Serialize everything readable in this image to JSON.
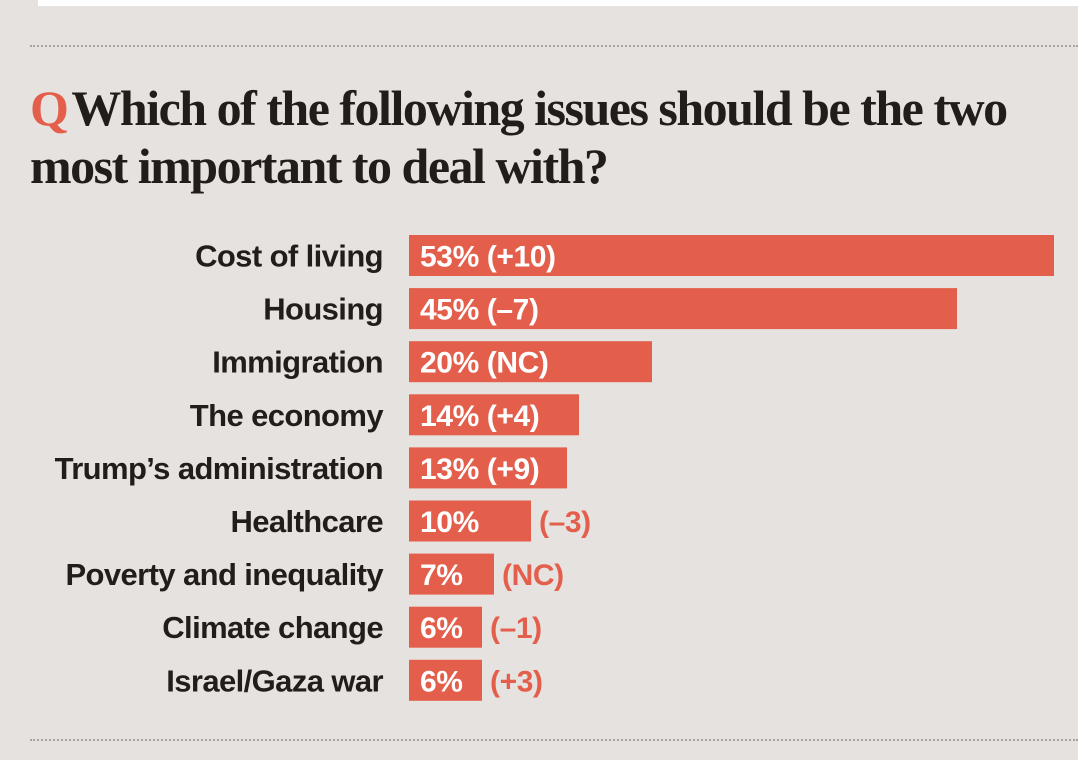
{
  "colors": {
    "background": "#e6e2e0",
    "bar": "#e35e4b",
    "text": "#211d1a",
    "inside_label": "#ffffff",
    "outside_label": "#e35e4b"
  },
  "question": {
    "marker": "Q",
    "text": "Which of the following issues should be the two most important to deal with?"
  },
  "chart_data": {
    "type": "bar",
    "orientation": "horizontal",
    "title": "Which of the following issues should be the two most important to deal with?",
    "xlabel": "",
    "ylabel": "",
    "unit": "%",
    "xlim": [
      0,
      53
    ],
    "categories": [
      "Cost of living",
      "Housing",
      "Immigration",
      "The economy",
      "Trump’s administration",
      "Healthcare",
      "Poverty and inequality",
      "Climate change",
      "Israel/Gaza war"
    ],
    "values": [
      53,
      45,
      20,
      14,
      13,
      10,
      7,
      6,
      6
    ],
    "changes": [
      "+10",
      "–7",
      "NC",
      "+4",
      "+9",
      "–3",
      "NC",
      "–1",
      "+3"
    ],
    "data_labels": [
      "53% (+10)",
      "45% (–7)",
      "20% (NC)",
      "14% (+4)",
      "13% (+9)",
      "10%",
      "7%",
      "6%",
      "6%"
    ],
    "outside_labels": [
      "",
      "",
      "",
      "",
      "",
      "(–3)",
      "(NC)",
      "(–1)",
      "(+3)"
    ]
  }
}
